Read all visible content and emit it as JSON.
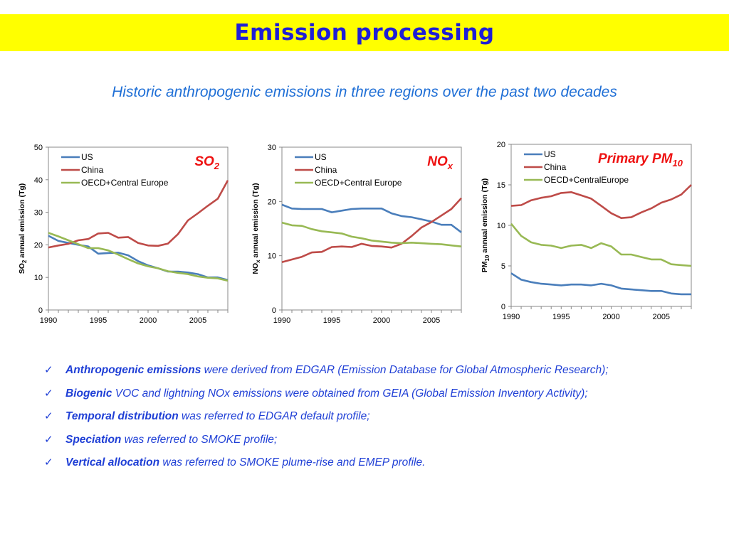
{
  "slide": {
    "title": "Emission processing",
    "subtitle": "Historic anthropogenic emissions in three regions over the past two decades"
  },
  "colors": {
    "US": "#4a7ebb",
    "China": "#be4b48",
    "OECD": "#98b954"
  },
  "chart_data": [
    {
      "type": "line",
      "label_main": "SO",
      "label_sub": "2",
      "ylabel_pre": "SO",
      "ylabel_sub": "2",
      "ylabel_post": " annual emission (Tg)",
      "ylim": [
        0,
        50
      ],
      "yticks": [
        0,
        10,
        20,
        30,
        40,
        50
      ],
      "xlim": [
        1990,
        2008
      ],
      "xticks": [
        1990,
        1995,
        2000,
        2005
      ],
      "x": [
        1990,
        1991,
        1992,
        1993,
        1994,
        1995,
        1996,
        1997,
        1998,
        1999,
        2000,
        2001,
        2002,
        2003,
        2004,
        2005,
        2006,
        2007,
        2008
      ],
      "series": [
        {
          "name": "US",
          "color": "#4a7ebb",
          "values": [
            22.8,
            21.2,
            20.6,
            20.0,
            19.5,
            17.3,
            17.5,
            17.6,
            16.8,
            15.0,
            13.7,
            12.8,
            11.8,
            11.8,
            11.5,
            11.0,
            10.0,
            10.0,
            9.2
          ]
        },
        {
          "name": "China",
          "color": "#be4b48",
          "values": [
            19.2,
            19.8,
            20.3,
            21.4,
            21.8,
            23.5,
            23.7,
            22.2,
            22.4,
            20.6,
            19.8,
            19.7,
            20.4,
            23.3,
            27.5,
            29.7,
            32.0,
            34.2,
            39.8
          ]
        },
        {
          "name": "OECD+Central Europe",
          "color": "#98b954",
          "values": [
            23.7,
            22.6,
            21.4,
            20.2,
            19.0,
            19.0,
            18.3,
            17.0,
            15.6,
            14.3,
            13.4,
            12.8,
            11.9,
            11.4,
            11.0,
            10.3,
            9.9,
            9.7,
            9.0
          ]
        }
      ]
    },
    {
      "type": "line",
      "label_main": "NO",
      "label_sub": "x",
      "ylabel_pre": "NO",
      "ylabel_sub": "x",
      "ylabel_post": " annual emission (Tg)",
      "ylim": [
        0,
        30
      ],
      "yticks": [
        0,
        10,
        20,
        30
      ],
      "xlim": [
        1990,
        2008
      ],
      "xticks": [
        1990,
        1995,
        2000,
        2005
      ],
      "x": [
        1990,
        1991,
        1992,
        1993,
        1994,
        1995,
        1996,
        1997,
        1998,
        1999,
        2000,
        2001,
        2002,
        2003,
        2004,
        2005,
        2006,
        2007,
        2008
      ],
      "series": [
        {
          "name": "US",
          "color": "#4a7ebb",
          "values": [
            19.4,
            18.7,
            18.6,
            18.6,
            18.6,
            18.0,
            18.3,
            18.6,
            18.7,
            18.7,
            18.7,
            17.8,
            17.3,
            17.1,
            16.7,
            16.3,
            15.7,
            15.7,
            14.3
          ]
        },
        {
          "name": "China",
          "color": "#be4b48",
          "values": [
            8.8,
            9.3,
            9.8,
            10.6,
            10.7,
            11.6,
            11.7,
            11.6,
            12.2,
            11.8,
            11.7,
            11.5,
            12.2,
            13.6,
            15.2,
            16.2,
            17.4,
            18.6,
            20.6
          ]
        },
        {
          "name": "OECD+Central Europe",
          "color": "#98b954",
          "values": [
            16.1,
            15.6,
            15.5,
            14.9,
            14.5,
            14.3,
            14.1,
            13.5,
            13.2,
            12.8,
            12.6,
            12.4,
            12.3,
            12.4,
            12.3,
            12.2,
            12.1,
            11.9,
            11.7
          ]
        }
      ]
    },
    {
      "type": "line",
      "label_main": "Primary PM",
      "label_sub": "10",
      "ylabel_pre": "PM",
      "ylabel_sub": "10",
      "ylabel_post": " annual emission (Tg)",
      "ylim": [
        0,
        20
      ],
      "yticks": [
        0,
        5,
        10,
        15,
        20
      ],
      "xlim": [
        1990,
        2008
      ],
      "xticks": [
        1990,
        1995,
        2000,
        2005
      ],
      "x": [
        1990,
        1991,
        1992,
        1993,
        1994,
        1995,
        1996,
        1997,
        1998,
        1999,
        2000,
        2001,
        2002,
        2003,
        2004,
        2005,
        2006,
        2007,
        2008
      ],
      "series": [
        {
          "name": "US",
          "color": "#4a7ebb",
          "values": [
            4.1,
            3.3,
            3.0,
            2.8,
            2.7,
            2.6,
            2.7,
            2.7,
            2.6,
            2.8,
            2.6,
            2.2,
            2.1,
            2.0,
            1.9,
            1.9,
            1.6,
            1.5,
            1.5
          ]
        },
        {
          "name": "China",
          "color": "#be4b48",
          "values": [
            12.4,
            12.5,
            13.1,
            13.4,
            13.6,
            14.0,
            14.1,
            13.7,
            13.3,
            12.4,
            11.5,
            10.9,
            11.0,
            11.6,
            12.1,
            12.8,
            13.2,
            13.8,
            15.0
          ]
        },
        {
          "name": "OECD+CentralEurope",
          "color": "#98b954",
          "values": [
            10.2,
            8.7,
            7.9,
            7.6,
            7.5,
            7.2,
            7.5,
            7.6,
            7.2,
            7.8,
            7.4,
            6.4,
            6.4,
            6.1,
            5.8,
            5.8,
            5.2,
            5.1,
            5.0
          ]
        }
      ]
    }
  ],
  "bullets": [
    {
      "bold": "Anthropogenic emissions",
      "text": " were derived from EDGAR (Emission Database for Global Atmospheric Research);"
    },
    {
      "bold": "Biogenic",
      "text": " VOC and lightning NOx emissions were obtained from GEIA (Global Emission Inventory Activity);"
    },
    {
      "bold": "Temporal distribution",
      "text": " was referred to EDGAR default profile;"
    },
    {
      "bold": "Speciation",
      "text": " was referred to SMOKE profile;"
    },
    {
      "bold": "Vertical allocation",
      "text": " was referred to SMOKE plume-rise and EMEP profile."
    }
  ],
  "check_glyph": "✓"
}
